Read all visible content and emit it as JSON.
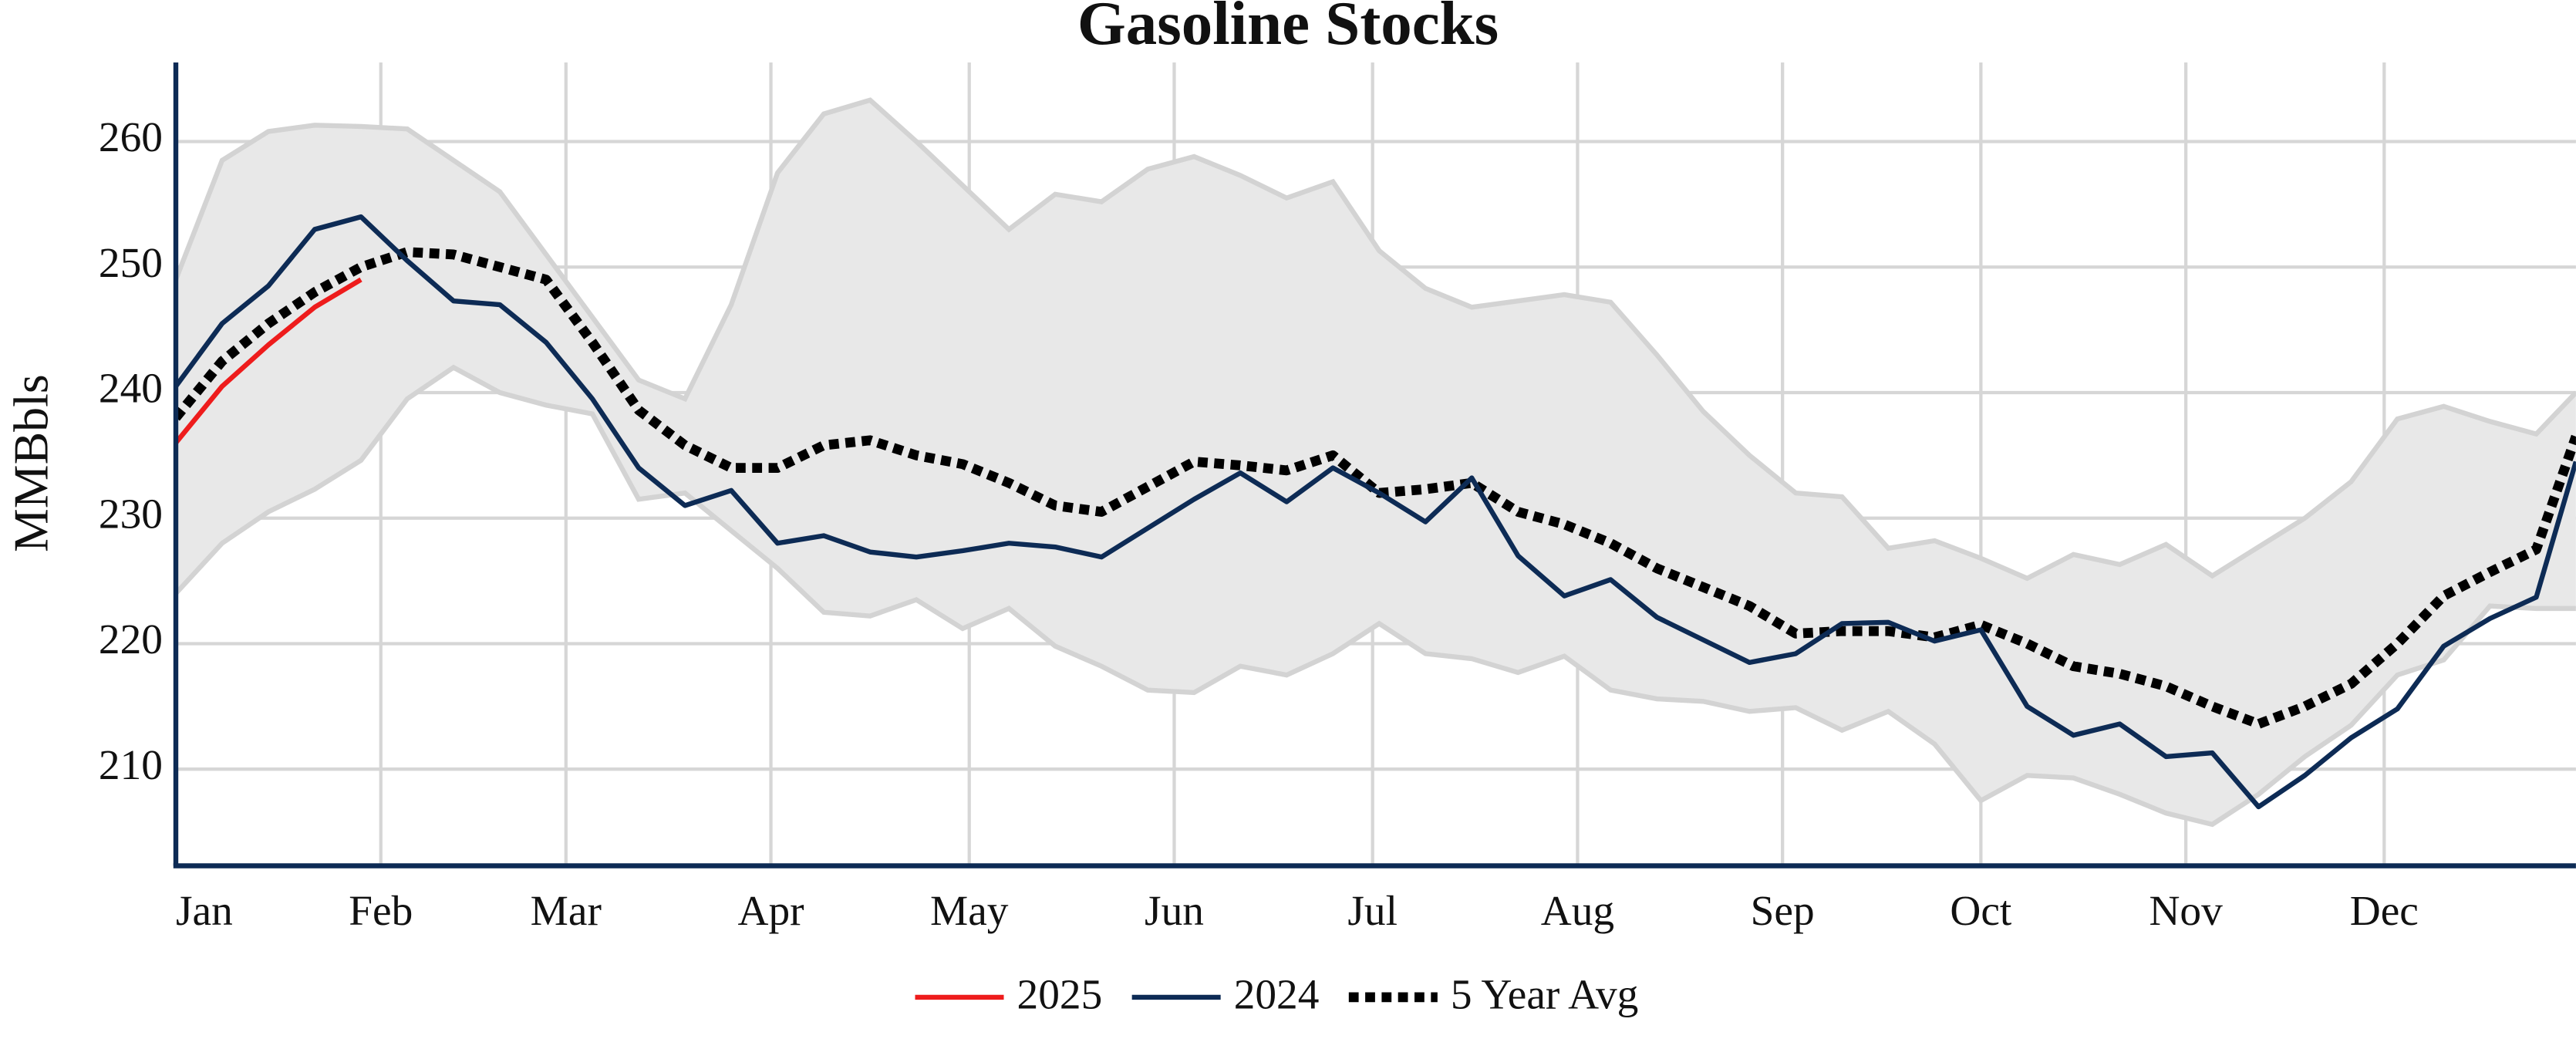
{
  "chart_data": {
    "type": "line",
    "title": "Gasoline Stocks",
    "ylabel": "MMBbls",
    "x": [
      1,
      8,
      15,
      22,
      29,
      36,
      43,
      50,
      57,
      64,
      71,
      78,
      85,
      92,
      99,
      106,
      113,
      120,
      127,
      134,
      141,
      148,
      155,
      162,
      169,
      176,
      183,
      190,
      197,
      204,
      211,
      218,
      225,
      232,
      239,
      246,
      253,
      260,
      267,
      274,
      281,
      288,
      295,
      302,
      309,
      316,
      323,
      330,
      337,
      344,
      351,
      358,
      364
    ],
    "xlim": [
      1,
      364
    ],
    "xticks": [
      {
        "value": 1,
        "label": "Jan"
      },
      {
        "value": 32,
        "label": "Feb"
      },
      {
        "value": 60,
        "label": "Mar"
      },
      {
        "value": 91,
        "label": "Apr"
      },
      {
        "value": 121,
        "label": "May"
      },
      {
        "value": 152,
        "label": "Jun"
      },
      {
        "value": 182,
        "label": "Jul"
      },
      {
        "value": 213,
        "label": "Aug"
      },
      {
        "value": 244,
        "label": "Sep"
      },
      {
        "value": 274,
        "label": "Oct"
      },
      {
        "value": 305,
        "label": "Nov"
      },
      {
        "value": 335,
        "label": "Dec"
      }
    ],
    "ylim": [
      202.3,
      266.3
    ],
    "yticks": [
      210,
      220,
      230,
      240,
      250,
      260
    ],
    "grid": true,
    "legend": "bottom",
    "band": {
      "color": "#e8e8e8",
      "edge_color": "#d3d3d3",
      "upper": [
        249,
        258.5,
        260.8,
        261.3,
        261.2,
        261,
        258.5,
        256,
        251,
        246,
        241,
        239.5,
        247,
        257.5,
        262.2,
        263.3,
        260,
        256.5,
        253,
        255.8,
        255.2,
        257.8,
        258.8,
        257.3,
        255.5,
        256.8,
        251.3,
        248.3,
        246.8,
        247.3,
        247.8,
        247.2,
        243,
        238.5,
        235,
        232,
        231.7,
        227.6,
        228.2,
        226.8,
        225.2,
        227.1,
        226.3,
        227.9,
        225.4,
        227.7,
        230,
        232.9,
        237.9,
        238.9,
        237.7,
        236.7,
        240
      ],
      "lower": [
        224,
        228,
        230.5,
        232.3,
        234.6,
        239.5,
        242,
        240,
        239,
        238.3,
        231.5,
        232,
        229,
        226,
        222.5,
        222.2,
        223.5,
        221.2,
        222.8,
        219.8,
        218.2,
        216.3,
        216.1,
        218.2,
        217.5,
        219.2,
        221.6,
        219.2,
        218.8,
        217.7,
        219,
        216.3,
        215.6,
        215.4,
        214.6,
        214.9,
        213.1,
        214.6,
        212,
        207.5,
        209.5,
        209.3,
        208,
        206.5,
        205.6,
        208,
        211,
        213.5,
        217.5,
        218.7,
        223,
        222.8,
        222.8
      ]
    },
    "series": [
      {
        "name": "2025",
        "color": "#ee1c1c",
        "style": "solid",
        "values": [
          236,
          240.5,
          243.8,
          246.8,
          249,
          null,
          null,
          null,
          null,
          null,
          null,
          null,
          null,
          null,
          null,
          null,
          null,
          null,
          null,
          null,
          null,
          null,
          null,
          null,
          null,
          null,
          null,
          null,
          null,
          null,
          null,
          null,
          null,
          null,
          null,
          null,
          null,
          null,
          null,
          null,
          null,
          null,
          null,
          null,
          null,
          null,
          null,
          null,
          null,
          null,
          null,
          null,
          null
        ]
      },
      {
        "name": "2024",
        "color": "#0d2b55",
        "style": "solid",
        "values": [
          240.5,
          245.5,
          248.5,
          253,
          254,
          250.5,
          247.3,
          247,
          244,
          239.5,
          234,
          231,
          232.2,
          228,
          228.6,
          227.3,
          226.9,
          227.4,
          228,
          227.7,
          226.9,
          229.2,
          231.5,
          233.6,
          231.3,
          234,
          232,
          229.7,
          233.2,
          227,
          223.8,
          225.1,
          222.1,
          220.3,
          218.5,
          219.2,
          221.6,
          221.7,
          220.2,
          221.1,
          215,
          212.7,
          213.6,
          211,
          211.3,
          207,
          209.5,
          212.5,
          214.8,
          219.8,
          222,
          223.7,
          234.5
        ]
      },
      {
        "name": "5 Year Avg",
        "color": "#000000",
        "style": "dotted",
        "values": [
          238,
          242.5,
          245.5,
          248,
          250,
          251.2,
          251,
          250,
          249,
          244,
          238.6,
          235.8,
          234,
          234,
          235.8,
          236.2,
          235,
          234.3,
          232.8,
          231,
          230.5,
          232.5,
          234.5,
          234.2,
          233.8,
          235,
          232,
          232.3,
          232.8,
          230.5,
          229.5,
          228,
          226,
          224.5,
          223,
          220.8,
          221,
          221,
          220.5,
          221.5,
          220,
          218.2,
          217.6,
          216.6,
          215,
          213.6,
          215,
          216.8,
          220,
          223.8,
          225.7,
          227.5,
          236.5
        ]
      }
    ]
  }
}
